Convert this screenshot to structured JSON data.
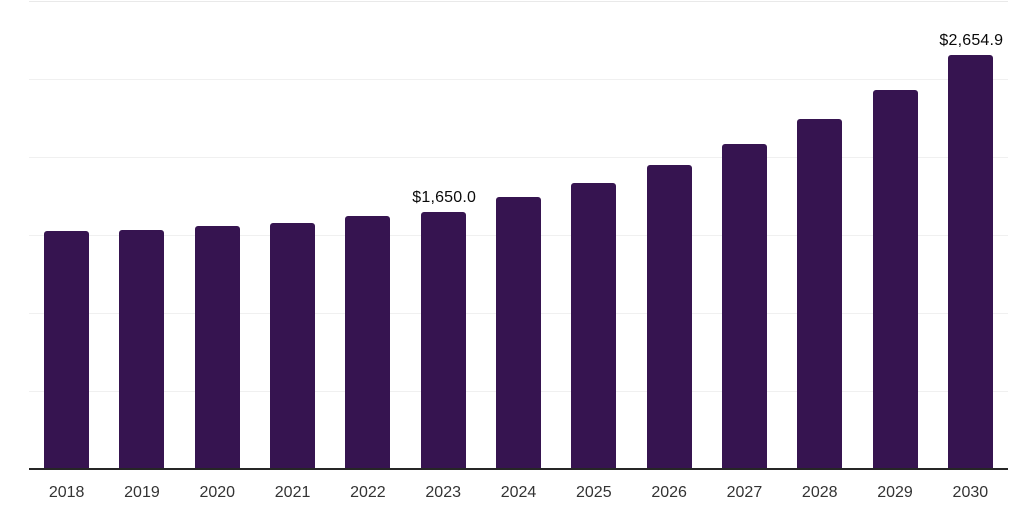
{
  "chart_data": {
    "type": "bar",
    "title": "",
    "xlabel": "",
    "ylabel": "",
    "categories": [
      "2018",
      "2019",
      "2020",
      "2021",
      "2022",
      "2023",
      "2024",
      "2025",
      "2026",
      "2027",
      "2028",
      "2029",
      "2030"
    ],
    "values": [
      1525,
      1535,
      1557,
      1580,
      1622,
      1650.0,
      1746,
      1833,
      1950,
      2085,
      2243,
      2427,
      2654.9
    ],
    "data_labels": [
      {
        "category": "2023",
        "index": 5,
        "text": "$1,650.0"
      },
      {
        "category": "2030",
        "index": 12,
        "text": "$2,654.9"
      }
    ],
    "ylim": [
      0,
      3000
    ],
    "gridline_interval": 500,
    "grid": "horizontal-only",
    "legend": "none",
    "y_tick_labels_visible": false,
    "colors": {
      "bar": "#361450",
      "gridline": "#f0f0f0",
      "top_gridline": "#e9e9e9",
      "axis_line": "#262626",
      "tick_text": "#333333",
      "data_label_text": "#0a0a0a",
      "background": "#ffffff"
    }
  }
}
